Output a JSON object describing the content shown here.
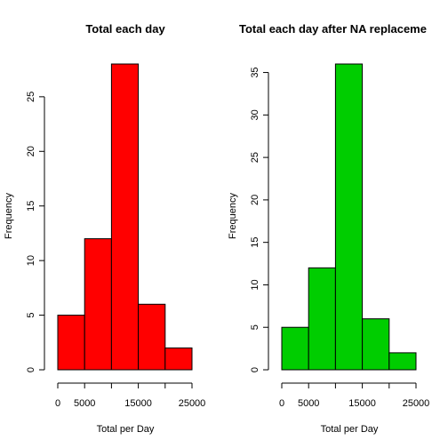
{
  "chart_data": [
    {
      "type": "bar",
      "title": "Total each day",
      "xlabel": "Total per Day",
      "ylabel": "Frequency",
      "bins": [
        [
          0,
          5000
        ],
        [
          5000,
          10000
        ],
        [
          10000,
          15000
        ],
        [
          15000,
          20000
        ],
        [
          20000,
          25000
        ]
      ],
      "values": [
        5,
        12,
        28,
        6,
        2
      ],
      "xlim": [
        0,
        25000
      ],
      "ylim": [
        0,
        28
      ],
      "xticks": [
        0,
        5000,
        10000,
        15000,
        20000,
        25000
      ],
      "xtick_labels": [
        "0",
        "5000",
        "",
        "15000",
        "",
        "25000"
      ],
      "yticks": [
        0,
        5,
        10,
        15,
        20,
        25
      ],
      "ytick_labels": [
        "0",
        "5",
        "10",
        "15",
        "20",
        "25"
      ],
      "color": "#ff0000",
      "grid": false
    },
    {
      "type": "bar",
      "title": "Total each day after NA replaceme",
      "xlabel": "Total per Day",
      "ylabel": "Frequency",
      "bins": [
        [
          0,
          5000
        ],
        [
          5000,
          10000
        ],
        [
          10000,
          15000
        ],
        [
          15000,
          20000
        ],
        [
          20000,
          25000
        ]
      ],
      "values": [
        5,
        12,
        36,
        6,
        2
      ],
      "xlim": [
        0,
        25000
      ],
      "ylim": [
        0,
        36
      ],
      "xticks": [
        0,
        5000,
        10000,
        15000,
        20000,
        25000
      ],
      "xtick_labels": [
        "0",
        "5000",
        "",
        "15000",
        "",
        "25000"
      ],
      "yticks": [
        0,
        5,
        10,
        15,
        20,
        25,
        30,
        35
      ],
      "ytick_labels": [
        "0",
        "5",
        "10",
        "15",
        "20",
        "25",
        "30",
        "35"
      ],
      "color": "#00cd00",
      "grid": false
    }
  ]
}
